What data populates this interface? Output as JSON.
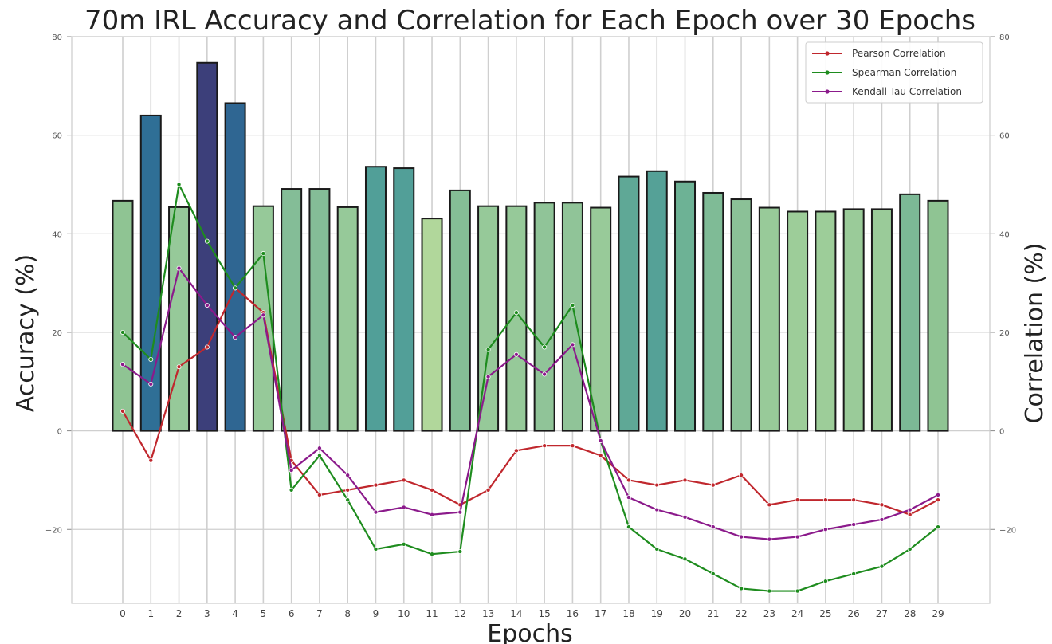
{
  "chart_data": {
    "type": "bar",
    "title": "70m IRL Accuracy and Correlation for Each Epoch over 30 Epochs",
    "xlabel": "Epochs",
    "ylabel": "Accuracy (%)",
    "y2label": "Correlation (%)",
    "ylim": [
      -35,
      80
    ],
    "y2lim": [
      -35,
      80
    ],
    "yticks": [
      -20,
      0,
      20,
      40,
      60,
      80
    ],
    "y2ticks": [
      -20,
      0,
      20,
      40,
      60,
      80
    ],
    "grid": true,
    "legend_position": "top-right",
    "categories": [
      "0",
      "1",
      "2",
      "3",
      "4",
      "5",
      "6",
      "7",
      "8",
      "9",
      "10",
      "11",
      "12",
      "13",
      "14",
      "15",
      "16",
      "17",
      "18",
      "19",
      "20",
      "21",
      "22",
      "23",
      "24",
      "25",
      "26",
      "27",
      "28",
      "29"
    ],
    "bars": {
      "name": "Accuracy",
      "values": [
        46.7,
        64.0,
        45.4,
        74.7,
        66.5,
        45.6,
        49.1,
        49.1,
        45.4,
        53.6,
        53.3,
        43.1,
        48.8,
        45.6,
        45.6,
        46.3,
        46.3,
        45.3,
        51.6,
        52.7,
        50.6,
        48.3,
        47.0,
        45.3,
        44.5,
        44.5,
        45.0,
        45.0,
        48.0,
        46.7
      ],
      "colors": [
        "#8fc493",
        "#2f6f96",
        "#96c999",
        "#3c3f7a",
        "#2f6692",
        "#96c999",
        "#84bd97",
        "#84bd97",
        "#96c999",
        "#519f98",
        "#529f98",
        "#b1d79b",
        "#85be96",
        "#96c999",
        "#96c999",
        "#90c498",
        "#90c498",
        "#98ca99",
        "#5fa896",
        "#55a197",
        "#6db295",
        "#7fbb96",
        "#8bc197",
        "#98ca99",
        "#9dcd99",
        "#9dcd99",
        "#9acb99",
        "#9acb99",
        "#7cb996",
        "#8fc493"
      ]
    },
    "series": [
      {
        "name": "Pearson Correlation",
        "color": "#c0272d",
        "values": [
          4,
          -6,
          13,
          17,
          29,
          24,
          -6,
          -13,
          -12,
          -11,
          -10,
          -12,
          -15,
          -12,
          -4,
          -3,
          -3,
          -5,
          -10,
          -11,
          -10,
          -11,
          -9,
          -15,
          -14,
          -14,
          -14,
          -15,
          -17,
          -14
        ]
      },
      {
        "name": "Spearman Correlation",
        "color": "#1e8c1e",
        "values": [
          20,
          14.5,
          50,
          38.5,
          29,
          36,
          -12,
          -5,
          -14,
          -24,
          -23,
          -25,
          -24.5,
          16.5,
          24,
          17,
          25.5,
          -2,
          -19.5,
          -24,
          -26,
          -29,
          -32,
          -32.5,
          -32.5,
          -30.5,
          -29,
          -27.5,
          -24,
          -19.5
        ]
      },
      {
        "name": "Kendall Tau Correlation",
        "color": "#8b1a8b",
        "values": [
          13.5,
          9.5,
          33,
          25.5,
          19,
          23.5,
          -8,
          -3.5,
          -9,
          -16.5,
          -15.5,
          -17,
          -16.5,
          11,
          15.5,
          11.5,
          17.5,
          -2,
          -13.5,
          -16,
          -17.5,
          -19.5,
          -21.5,
          -22,
          -21.5,
          -20,
          -19,
          -18,
          -16,
          -13
        ]
      }
    ]
  }
}
